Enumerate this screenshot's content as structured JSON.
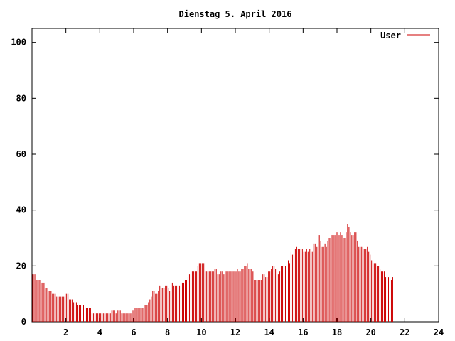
{
  "chart_data": {
    "type": "bar",
    "title": "Dienstag 5. April 2016",
    "xlabel": "",
    "ylabel": "",
    "xlim": [
      0,
      24
    ],
    "ylim": [
      0,
      105
    ],
    "x_ticks": [
      "2",
      "4",
      "6",
      "8",
      "10",
      "12",
      "14",
      "16",
      "18",
      "20",
      "22",
      "24"
    ],
    "y_ticks": [
      "0",
      "20",
      "40",
      "60",
      "80",
      "100"
    ],
    "grid": false,
    "legend_position": "top-right",
    "series": [
      {
        "name": "User",
        "color": "#cc0000",
        "interval_minutes": 5,
        "values": [
          17,
          17,
          17,
          15,
          15,
          15,
          14,
          14,
          14,
          12,
          12,
          11,
          11,
          11,
          10,
          10,
          10,
          9,
          9,
          9,
          9,
          9,
          9,
          10,
          10,
          10,
          8,
          8,
          8,
          7,
          7,
          7,
          6,
          6,
          6,
          6,
          6,
          6,
          5,
          5,
          5,
          5,
          3,
          3,
          3,
          3,
          3,
          3,
          3,
          3,
          3,
          3,
          3,
          3,
          3,
          3,
          4,
          4,
          4,
          3,
          4,
          4,
          4,
          3,
          3,
          3,
          3,
          3,
          3,
          3,
          3,
          4,
          5,
          5,
          5,
          5,
          5,
          5,
          5,
          6,
          6,
          6,
          7,
          8,
          9,
          11,
          11,
          10,
          10,
          11,
          13,
          12,
          12,
          12,
          13,
          13,
          12,
          11,
          14,
          14,
          13,
          13,
          13,
          13,
          13,
          14,
          14,
          14,
          15,
          15,
          16,
          17,
          17,
          18,
          18,
          18,
          18,
          20,
          21,
          21,
          21,
          21,
          21,
          18,
          18,
          18,
          18,
          18,
          18,
          19,
          19,
          17,
          17,
          18,
          18,
          17,
          17,
          18,
          18,
          18,
          18,
          18,
          18,
          18,
          18,
          19,
          18,
          18,
          19,
          19,
          20,
          20,
          21,
          19,
          19,
          19,
          18,
          15,
          15,
          15,
          15,
          15,
          15,
          17,
          17,
          16,
          16,
          18,
          18,
          19,
          20,
          20,
          19,
          17,
          17,
          18,
          20,
          20,
          20,
          20,
          21,
          22,
          21,
          25,
          24,
          24,
          26,
          27,
          26,
          26,
          26,
          26,
          25,
          25,
          26,
          25,
          26,
          26,
          25,
          28,
          28,
          27,
          27,
          31,
          29,
          27,
          27,
          28,
          27,
          29,
          30,
          30,
          31,
          31,
          31,
          32,
          32,
          31,
          32,
          31,
          30,
          30,
          32,
          35,
          34,
          32,
          31,
          31,
          32,
          32,
          29,
          27,
          27,
          27,
          26,
          26,
          26,
          27,
          25,
          24,
          22,
          21,
          21,
          21,
          20,
          20,
          19,
          18,
          18,
          18,
          16,
          16,
          16,
          16,
          15,
          16
        ]
      }
    ]
  }
}
